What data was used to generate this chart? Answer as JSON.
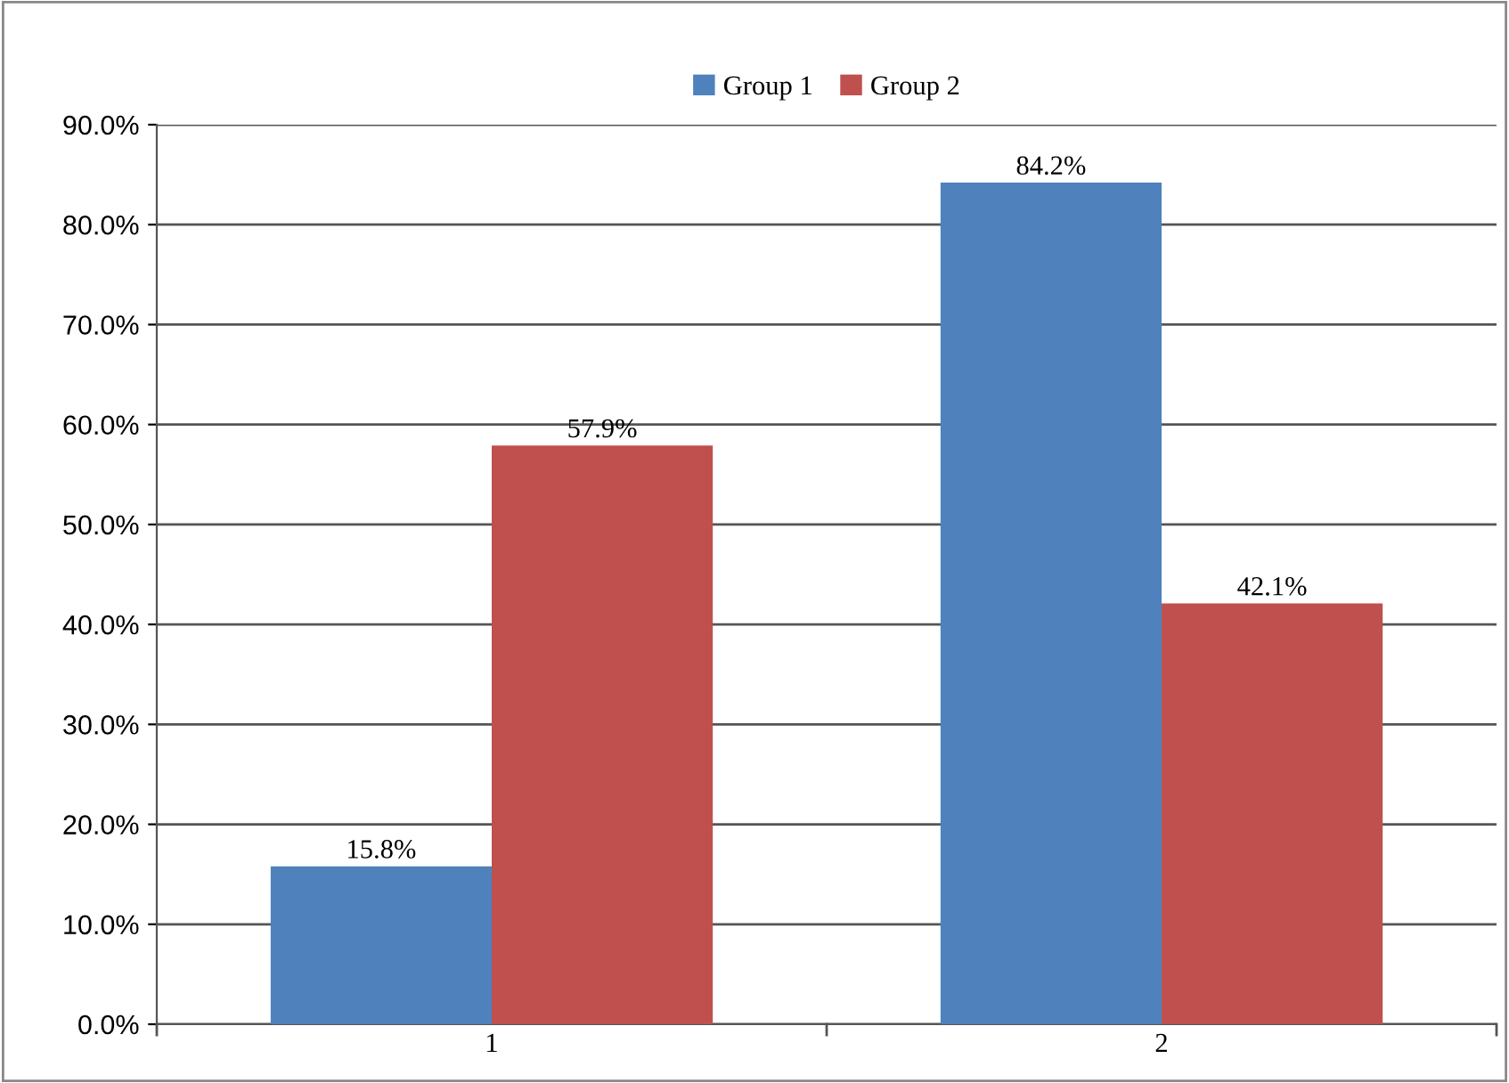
{
  "chart_data": {
    "type": "bar",
    "categories": [
      "1",
      "2"
    ],
    "series": [
      {
        "name": "Group 1",
        "color": "#4f81bd",
        "values": [
          15.8,
          84.2
        ],
        "value_labels": [
          "15.8%",
          "84.2%"
        ]
      },
      {
        "name": "Group 2",
        "color": "#c0504d",
        "values": [
          57.9,
          42.1
        ],
        "value_labels": [
          "57.9%",
          "42.1%"
        ]
      }
    ],
    "ylim": [
      0,
      90
    ],
    "yticks": [
      {
        "value": 0,
        "label": "0.0%"
      },
      {
        "value": 10,
        "label": "10.0%"
      },
      {
        "value": 20,
        "label": "20.0%"
      },
      {
        "value": 30,
        "label": "30.0%"
      },
      {
        "value": 40,
        "label": "40.0%"
      },
      {
        "value": 50,
        "label": "50.0%"
      },
      {
        "value": 60,
        "label": "60.0%"
      },
      {
        "value": 70,
        "label": "70.0%"
      },
      {
        "value": 80,
        "label": "80.0%"
      },
      {
        "value": 90,
        "label": "90.0%"
      }
    ],
    "grid": "y",
    "legend": "top"
  }
}
